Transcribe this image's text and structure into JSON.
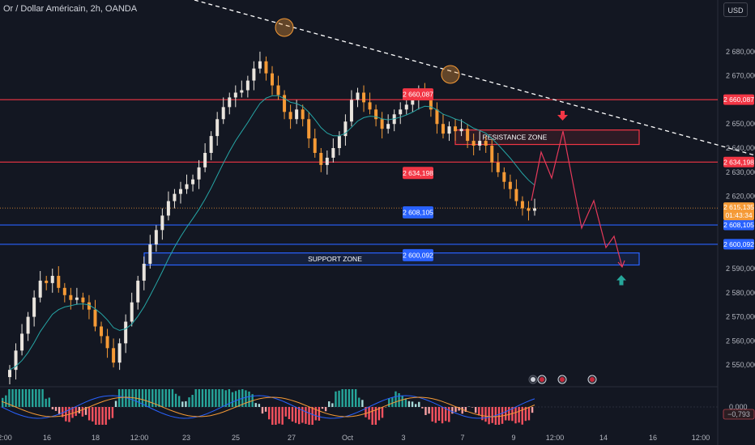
{
  "header": {
    "title": "Or / Dollar Américain, 2h, OANDA",
    "currency_button": "USD"
  },
  "colors": {
    "background": "#131722",
    "bull": "#e9e4dd",
    "bear": "#f59a36",
    "red_line": "#f23645",
    "blue_line": "#2962ff",
    "ma": "#26a6a6",
    "hist_up": "#a8dbd9",
    "hist_up_strong": "#26a69a",
    "hist_down": "#f7525f",
    "hist_down_light": "#faa1a4",
    "projection": "#e5395a"
  },
  "chart_data": {
    "type": "candlestick",
    "symbol": "Or / Dollar Américain",
    "timeframe": "2h",
    "broker": "OANDA",
    "ylim": [
      2542,
      2688
    ],
    "y_ticks": [
      "2 680,000",
      "2 670,000",
      "2 650,000",
      "2 640,000",
      "2 630,000",
      "2 620,000",
      "2 590,000",
      "2 580,000",
      "2 570,000",
      "2 560,000",
      "2 550,000"
    ],
    "x_ticks": [
      "2:00",
      "16",
      "18",
      "12:00",
      "23",
      "25",
      "27",
      "Oct",
      "3",
      "7",
      "9",
      "12:00",
      "14",
      "16",
      "12:00"
    ],
    "closes": [
      2548,
      2556,
      2563,
      2570,
      2578,
      2585,
      2584,
      2587,
      2582,
      2579,
      2577,
      2578,
      2576,
      2573,
      2566,
      2562,
      2557,
      2551,
      2559,
      2568,
      2576,
      2585,
      2592,
      2600,
      2606,
      2612,
      2618,
      2621,
      2623,
      2625,
      2627,
      2632,
      2638,
      2645,
      2652,
      2657,
      2661,
      2663,
      2664,
      2668,
      2673,
      2676,
      2671,
      2666,
      2662,
      2655,
      2652,
      2656,
      2652,
      2644,
      2638,
      2633,
      2636,
      2640,
      2645,
      2651,
      2660,
      2663,
      2659,
      2656,
      2652,
      2648,
      2650,
      2654,
      2656,
      2658,
      2660,
      2663,
      2662,
      2656,
      2650,
      2646,
      2649,
      2647,
      2648,
      2643,
      2641,
      2643,
      2641,
      2634,
      2630,
      2626,
      2623,
      2618,
      2615,
      2614,
      2615
    ],
    "horizontal_levels": [
      {
        "price": 2660.087,
        "label": "2 660,087",
        "color": "red"
      },
      {
        "price": 2634.198,
        "label": "2 634,198",
        "color": "red"
      },
      {
        "price": 2608.105,
        "label": "2 608,105",
        "color": "blue"
      },
      {
        "price": 2600.092,
        "label": "2 600,092",
        "color": "blue"
      }
    ],
    "current_price": {
      "label": "2 615,135",
      "countdown": "01:43:34"
    },
    "zones": [
      {
        "label": "RESISTANCE ZONE",
        "top": 2647.5,
        "bottom": 2641.5
      },
      {
        "label": "SUPPORT ZONE",
        "top": 2596.5,
        "bottom": 2591.5
      }
    ],
    "indicator": {
      "zero_label": "0,000",
      "value_label": "−0,793"
    }
  }
}
